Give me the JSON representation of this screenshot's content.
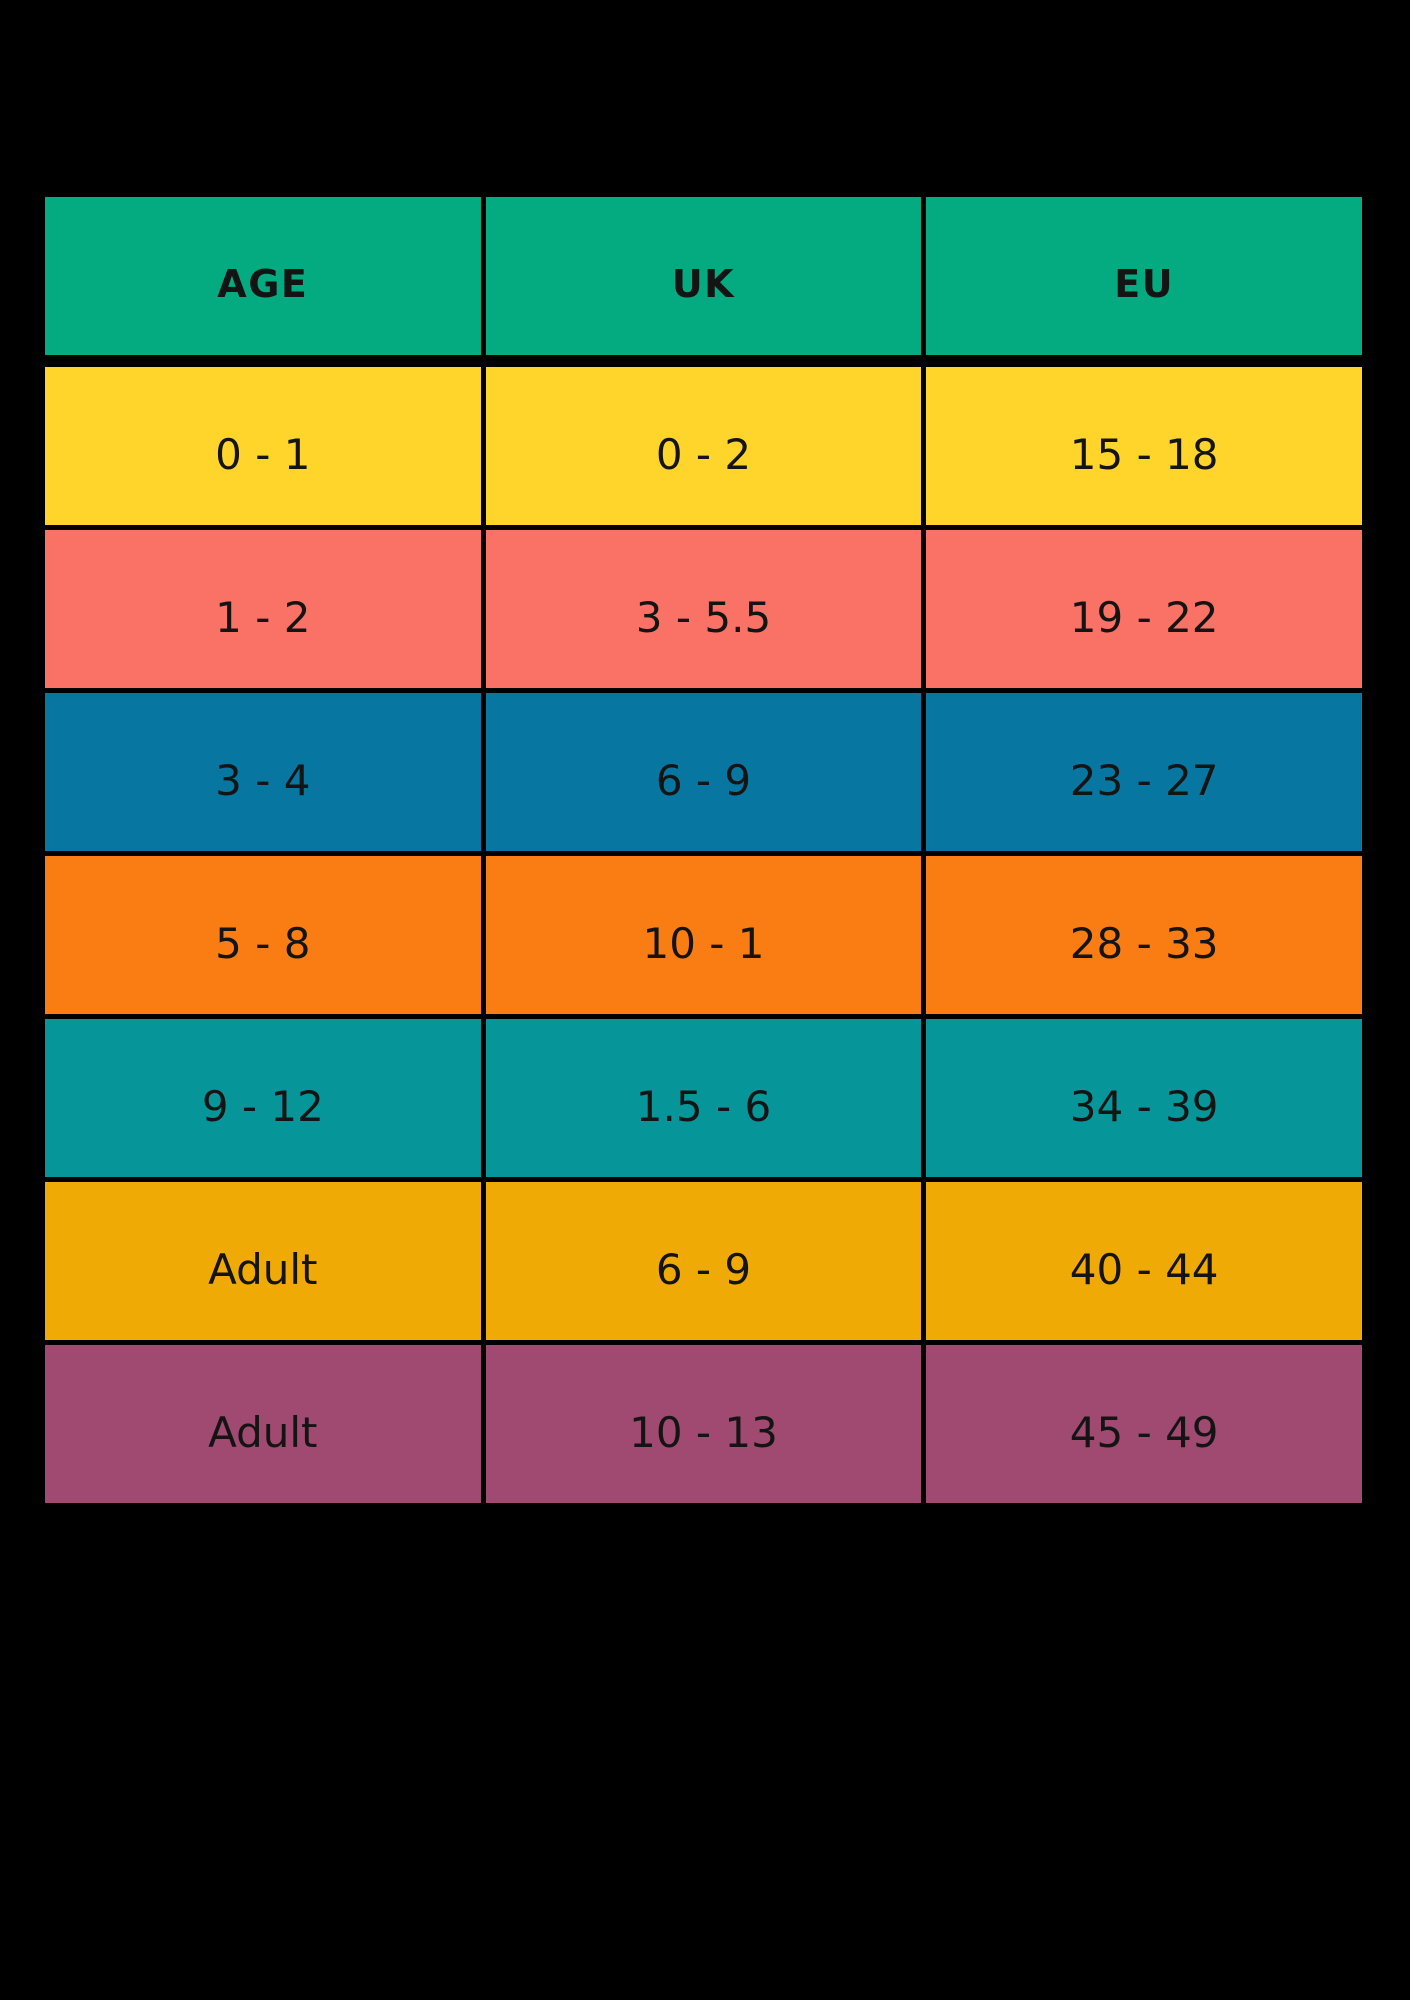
{
  "page": {
    "background": "#000000"
  },
  "chart_data": {
    "type": "table",
    "title": "",
    "columns": [
      "AGE",
      "UK",
      "EU"
    ],
    "rows": [
      [
        "0 - 1",
        "0 - 2",
        "15 - 18"
      ],
      [
        "1 - 2",
        "3 - 5.5",
        "19 - 22"
      ],
      [
        "3 - 4",
        "6 - 9",
        "23 - 27"
      ],
      [
        "5 - 8",
        "10 - 1",
        "28 - 33"
      ],
      [
        "9 - 12",
        "1.5 - 6",
        "34 - 39"
      ],
      [
        "Adult",
        "6 - 9",
        "40 - 44"
      ],
      [
        "Adult",
        "10 - 13",
        "45 - 49"
      ]
    ],
    "header_color": "#04AB80",
    "row_colors": [
      "#FFD52B",
      "#FA7265",
      "#0777A2",
      "#FA7D14",
      "#069699",
      "#F0AA06",
      "#A04A72"
    ],
    "text_color": "#141414",
    "grid_color": "#000000"
  }
}
